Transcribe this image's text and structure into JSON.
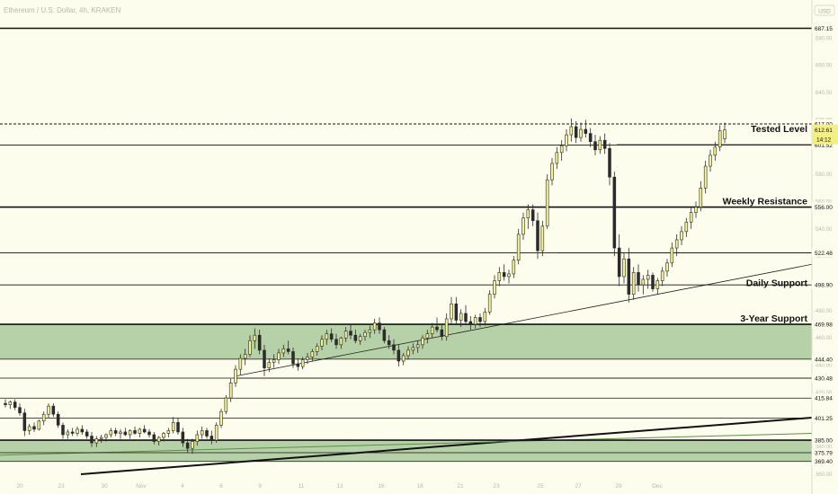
{
  "header": {
    "symbol_text": "Ethereum / U.S. Dollar, 4h, KRAKEN",
    "currency_badge": "USD"
  },
  "chart_data": {
    "type": "candlestick",
    "y_range": [
      360,
      700
    ],
    "x_ticks": [
      "20",
      "23",
      "30",
      "Nov",
      "4",
      "6",
      "9",
      "11",
      "13",
      "16",
      "18",
      "21",
      "23",
      "25",
      "27",
      "29",
      "Dec"
    ],
    "price_ticks": [
      680,
      660,
      640,
      620,
      600,
      580,
      560,
      540,
      520,
      500,
      480,
      460,
      440,
      420,
      400,
      380,
      360
    ],
    "levels": [
      {
        "price": 687.15,
        "label": "687.15",
        "annotation": "",
        "style": "solid",
        "weight": "heavy"
      },
      {
        "price": 617.0,
        "label": "617.00",
        "annotation": "",
        "style": "dashed",
        "weight": "normal"
      },
      {
        "price": 601.52,
        "label": "601.52",
        "annotation": "",
        "style": "solid",
        "weight": "thin"
      },
      {
        "price": 556.0,
        "label": "556.00",
        "annotation": "Weekly Resistance",
        "style": "solid",
        "weight": "heavy"
      },
      {
        "price": 522.48,
        "label": "522.48",
        "annotation": "",
        "style": "solid",
        "weight": "thin"
      },
      {
        "price": 498.9,
        "label": "498.90",
        "annotation": "",
        "style": "solid",
        "weight": "thin"
      },
      {
        "price": 469.98,
        "label": "469.98",
        "annotation": "3-Year Support",
        "style": "solid",
        "weight": "heavy"
      },
      {
        "price": 444.4,
        "label": "444.40",
        "annotation": "",
        "style": "solid",
        "weight": "thin"
      },
      {
        "price": 430.48,
        "label": "430.48",
        "annotation": "",
        "style": "solid",
        "weight": "thin"
      },
      {
        "price": 415.84,
        "label": "415.84",
        "annotation": "",
        "style": "solid",
        "weight": "thin"
      },
      {
        "price": 401.25,
        "label": "401.25",
        "annotation": "",
        "style": "solid",
        "weight": "thin"
      },
      {
        "price": 385.0,
        "label": "385.00",
        "annotation": "",
        "style": "solid",
        "weight": "heavy"
      },
      {
        "price": 375.79,
        "label": "375.79",
        "annotation": "",
        "style": "solid",
        "weight": "thin"
      },
      {
        "price": 369.4,
        "label": "369.40",
        "annotation": "",
        "style": "solid",
        "weight": "thin"
      }
    ],
    "text_annotations": [
      {
        "text": "Tested Level",
        "price": 613
      },
      {
        "text": "Daily Support",
        "price": 500
      }
    ],
    "current_price": {
      "value": "612.61",
      "countdown": "14:12"
    },
    "zones": [
      {
        "from": 444.4,
        "to": 469.98,
        "color": "#a9c99a"
      },
      {
        "from": 369.4,
        "to": 385.0,
        "color": "#a9c99a"
      }
    ],
    "colors": {
      "up": "#f6f290",
      "down": "#2b2b2b",
      "zone": "#a9c99a",
      "background": "#fdfdee"
    },
    "candles": [
      {
        "o": 412,
        "h": 415,
        "l": 409,
        "c": 411
      },
      {
        "o": 411,
        "h": 414,
        "l": 408,
        "c": 413
      },
      {
        "o": 413,
        "h": 415,
        "l": 407,
        "c": 409
      },
      {
        "o": 409,
        "h": 412,
        "l": 403,
        "c": 405
      },
      {
        "o": 405,
        "h": 408,
        "l": 388,
        "c": 392
      },
      {
        "o": 392,
        "h": 397,
        "l": 389,
        "c": 395
      },
      {
        "o": 395,
        "h": 398,
        "l": 391,
        "c": 393
      },
      {
        "o": 393,
        "h": 400,
        "l": 392,
        "c": 399
      },
      {
        "o": 399,
        "h": 406,
        "l": 396,
        "c": 404
      },
      {
        "o": 404,
        "h": 412,
        "l": 401,
        "c": 410
      },
      {
        "o": 410,
        "h": 412,
        "l": 402,
        "c": 404
      },
      {
        "o": 404,
        "h": 406,
        "l": 394,
        "c": 396
      },
      {
        "o": 396,
        "h": 398,
        "l": 386,
        "c": 389
      },
      {
        "o": 389,
        "h": 393,
        "l": 386,
        "c": 391
      },
      {
        "o": 391,
        "h": 394,
        "l": 388,
        "c": 390
      },
      {
        "o": 390,
        "h": 395,
        "l": 388,
        "c": 393
      },
      {
        "o": 393,
        "h": 396,
        "l": 389,
        "c": 391
      },
      {
        "o": 391,
        "h": 393,
        "l": 386,
        "c": 388
      },
      {
        "o": 388,
        "h": 391,
        "l": 380,
        "c": 383
      },
      {
        "o": 383,
        "h": 388,
        "l": 380,
        "c": 386
      },
      {
        "o": 386,
        "h": 389,
        "l": 383,
        "c": 387
      },
      {
        "o": 387,
        "h": 390,
        "l": 384,
        "c": 389
      },
      {
        "o": 389,
        "h": 394,
        "l": 387,
        "c": 392
      },
      {
        "o": 392,
        "h": 394,
        "l": 388,
        "c": 390
      },
      {
        "o": 390,
        "h": 393,
        "l": 386,
        "c": 391
      },
      {
        "o": 391,
        "h": 394,
        "l": 388,
        "c": 389
      },
      {
        "o": 389,
        "h": 393,
        "l": 386,
        "c": 392
      },
      {
        "o": 392,
        "h": 395,
        "l": 389,
        "c": 390
      },
      {
        "o": 390,
        "h": 394,
        "l": 387,
        "c": 393
      },
      {
        "o": 393,
        "h": 396,
        "l": 390,
        "c": 391
      },
      {
        "o": 391,
        "h": 393,
        "l": 387,
        "c": 389
      },
      {
        "o": 389,
        "h": 391,
        "l": 382,
        "c": 384
      },
      {
        "o": 384,
        "h": 388,
        "l": 381,
        "c": 387
      },
      {
        "o": 387,
        "h": 391,
        "l": 384,
        "c": 390
      },
      {
        "o": 390,
        "h": 394,
        "l": 387,
        "c": 392
      },
      {
        "o": 392,
        "h": 402,
        "l": 390,
        "c": 398
      },
      {
        "o": 398,
        "h": 401,
        "l": 389,
        "c": 391
      },
      {
        "o": 391,
        "h": 394,
        "l": 380,
        "c": 383
      },
      {
        "o": 383,
        "h": 386,
        "l": 376,
        "c": 379
      },
      {
        "o": 379,
        "h": 386,
        "l": 375,
        "c": 384
      },
      {
        "o": 384,
        "h": 392,
        "l": 381,
        "c": 389
      },
      {
        "o": 389,
        "h": 395,
        "l": 386,
        "c": 392
      },
      {
        "o": 392,
        "h": 394,
        "l": 386,
        "c": 388
      },
      {
        "o": 388,
        "h": 392,
        "l": 382,
        "c": 385
      },
      {
        "o": 385,
        "h": 398,
        "l": 383,
        "c": 396
      },
      {
        "o": 396,
        "h": 408,
        "l": 394,
        "c": 406
      },
      {
        "o": 406,
        "h": 418,
        "l": 404,
        "c": 416
      },
      {
        "o": 416,
        "h": 430,
        "l": 413,
        "c": 427
      },
      {
        "o": 427,
        "h": 440,
        "l": 424,
        "c": 437
      },
      {
        "o": 437,
        "h": 448,
        "l": 433,
        "c": 445
      },
      {
        "o": 445,
        "h": 452,
        "l": 440,
        "c": 448
      },
      {
        "o": 448,
        "h": 462,
        "l": 446,
        "c": 458
      },
      {
        "o": 458,
        "h": 467,
        "l": 452,
        "c": 462
      },
      {
        "o": 462,
        "h": 466,
        "l": 448,
        "c": 451
      },
      {
        "o": 451,
        "h": 455,
        "l": 432,
        "c": 438
      },
      {
        "o": 438,
        "h": 445,
        "l": 435,
        "c": 442
      },
      {
        "o": 442,
        "h": 448,
        "l": 438,
        "c": 444
      },
      {
        "o": 444,
        "h": 452,
        "l": 441,
        "c": 449
      },
      {
        "o": 449,
        "h": 455,
        "l": 446,
        "c": 452
      },
      {
        "o": 452,
        "h": 458,
        "l": 448,
        "c": 450
      },
      {
        "o": 450,
        "h": 453,
        "l": 438,
        "c": 441
      },
      {
        "o": 441,
        "h": 445,
        "l": 436,
        "c": 439
      },
      {
        "o": 439,
        "h": 446,
        "l": 437,
        "c": 444
      },
      {
        "o": 444,
        "h": 449,
        "l": 441,
        "c": 446
      },
      {
        "o": 446,
        "h": 452,
        "l": 443,
        "c": 450
      },
      {
        "o": 450,
        "h": 456,
        "l": 447,
        "c": 454
      },
      {
        "o": 454,
        "h": 462,
        "l": 451,
        "c": 459
      },
      {
        "o": 459,
        "h": 466,
        "l": 455,
        "c": 463
      },
      {
        "o": 463,
        "h": 467,
        "l": 457,
        "c": 459
      },
      {
        "o": 459,
        "h": 463,
        "l": 452,
        "c": 455
      },
      {
        "o": 455,
        "h": 461,
        "l": 452,
        "c": 460
      },
      {
        "o": 460,
        "h": 468,
        "l": 457,
        "c": 465
      },
      {
        "o": 465,
        "h": 470,
        "l": 459,
        "c": 462
      },
      {
        "o": 462,
        "h": 466,
        "l": 456,
        "c": 458
      },
      {
        "o": 458,
        "h": 463,
        "l": 455,
        "c": 461
      },
      {
        "o": 461,
        "h": 466,
        "l": 458,
        "c": 464
      },
      {
        "o": 464,
        "h": 469,
        "l": 460,
        "c": 466
      },
      {
        "o": 466,
        "h": 474,
        "l": 463,
        "c": 471
      },
      {
        "o": 471,
        "h": 475,
        "l": 463,
        "c": 466
      },
      {
        "o": 466,
        "h": 468,
        "l": 456,
        "c": 458
      },
      {
        "o": 458,
        "h": 462,
        "l": 452,
        "c": 455
      },
      {
        "o": 455,
        "h": 459,
        "l": 448,
        "c": 451
      },
      {
        "o": 451,
        "h": 455,
        "l": 439,
        "c": 443
      },
      {
        "o": 443,
        "h": 449,
        "l": 440,
        "c": 447
      },
      {
        "o": 447,
        "h": 454,
        "l": 444,
        "c": 451
      },
      {
        "o": 451,
        "h": 456,
        "l": 448,
        "c": 453
      },
      {
        "o": 453,
        "h": 458,
        "l": 449,
        "c": 455
      },
      {
        "o": 455,
        "h": 462,
        "l": 452,
        "c": 460
      },
      {
        "o": 460,
        "h": 466,
        "l": 456,
        "c": 463
      },
      {
        "o": 463,
        "h": 471,
        "l": 460,
        "c": 468
      },
      {
        "o": 468,
        "h": 475,
        "l": 464,
        "c": 466
      },
      {
        "o": 466,
        "h": 470,
        "l": 458,
        "c": 461
      },
      {
        "o": 461,
        "h": 478,
        "l": 458,
        "c": 474
      },
      {
        "o": 474,
        "h": 490,
        "l": 470,
        "c": 485
      },
      {
        "o": 485,
        "h": 490,
        "l": 470,
        "c": 473
      },
      {
        "o": 473,
        "h": 481,
        "l": 468,
        "c": 478
      },
      {
        "o": 478,
        "h": 484,
        "l": 470,
        "c": 472
      },
      {
        "o": 472,
        "h": 476,
        "l": 466,
        "c": 470
      },
      {
        "o": 470,
        "h": 477,
        "l": 467,
        "c": 475
      },
      {
        "o": 475,
        "h": 478,
        "l": 468,
        "c": 472
      },
      {
        "o": 472,
        "h": 482,
        "l": 469,
        "c": 479
      },
      {
        "o": 479,
        "h": 495,
        "l": 477,
        "c": 492
      },
      {
        "o": 492,
        "h": 506,
        "l": 489,
        "c": 502
      },
      {
        "o": 502,
        "h": 512,
        "l": 498,
        "c": 508
      },
      {
        "o": 508,
        "h": 514,
        "l": 502,
        "c": 505
      },
      {
        "o": 505,
        "h": 510,
        "l": 500,
        "c": 507
      },
      {
        "o": 507,
        "h": 520,
        "l": 504,
        "c": 517
      },
      {
        "o": 517,
        "h": 540,
        "l": 514,
        "c": 536
      },
      {
        "o": 536,
        "h": 552,
        "l": 532,
        "c": 548
      },
      {
        "o": 548,
        "h": 558,
        "l": 540,
        "c": 554
      },
      {
        "o": 554,
        "h": 558,
        "l": 542,
        "c": 546
      },
      {
        "o": 546,
        "h": 552,
        "l": 518,
        "c": 524
      },
      {
        "o": 524,
        "h": 546,
        "l": 520,
        "c": 542
      },
      {
        "o": 542,
        "h": 580,
        "l": 540,
        "c": 576
      },
      {
        "o": 576,
        "h": 592,
        "l": 572,
        "c": 588
      },
      {
        "o": 588,
        "h": 600,
        "l": 584,
        "c": 596
      },
      {
        "o": 596,
        "h": 605,
        "l": 590,
        "c": 601
      },
      {
        "o": 601,
        "h": 613,
        "l": 597,
        "c": 609
      },
      {
        "o": 609,
        "h": 621,
        "l": 604,
        "c": 615
      },
      {
        "o": 615,
        "h": 619,
        "l": 603,
        "c": 607
      },
      {
        "o": 607,
        "h": 618,
        "l": 604,
        "c": 613
      },
      {
        "o": 613,
        "h": 620,
        "l": 607,
        "c": 610
      },
      {
        "o": 610,
        "h": 614,
        "l": 600,
        "c": 604
      },
      {
        "o": 604,
        "h": 609,
        "l": 594,
        "c": 598
      },
      {
        "o": 598,
        "h": 608,
        "l": 595,
        "c": 605
      },
      {
        "o": 605,
        "h": 610,
        "l": 595,
        "c": 599
      },
      {
        "o": 599,
        "h": 603,
        "l": 572,
        "c": 578
      },
      {
        "o": 578,
        "h": 582,
        "l": 520,
        "c": 526
      },
      {
        "o": 526,
        "h": 536,
        "l": 498,
        "c": 505
      },
      {
        "o": 505,
        "h": 522,
        "l": 500,
        "c": 518
      },
      {
        "o": 518,
        "h": 526,
        "l": 486,
        "c": 492
      },
      {
        "o": 492,
        "h": 512,
        "l": 488,
        "c": 508
      },
      {
        "o": 508,
        "h": 514,
        "l": 494,
        "c": 499
      },
      {
        "o": 499,
        "h": 506,
        "l": 492,
        "c": 503
      },
      {
        "o": 503,
        "h": 510,
        "l": 496,
        "c": 506
      },
      {
        "o": 506,
        "h": 508,
        "l": 494,
        "c": 496
      },
      {
        "o": 496,
        "h": 504,
        "l": 492,
        "c": 502
      },
      {
        "o": 502,
        "h": 512,
        "l": 498,
        "c": 509
      },
      {
        "o": 509,
        "h": 518,
        "l": 505,
        "c": 515
      },
      {
        "o": 515,
        "h": 530,
        "l": 512,
        "c": 526
      },
      {
        "o": 526,
        "h": 536,
        "l": 520,
        "c": 532
      },
      {
        "o": 532,
        "h": 542,
        "l": 528,
        "c": 538
      },
      {
        "o": 538,
        "h": 548,
        "l": 534,
        "c": 545
      },
      {
        "o": 545,
        "h": 556,
        "l": 540,
        "c": 552
      },
      {
        "o": 552,
        "h": 560,
        "l": 548,
        "c": 556
      },
      {
        "o": 556,
        "h": 575,
        "l": 553,
        "c": 570
      },
      {
        "o": 570,
        "h": 590,
        "l": 566,
        "c": 586
      },
      {
        "o": 586,
        "h": 598,
        "l": 582,
        "c": 594
      },
      {
        "o": 594,
        "h": 604,
        "l": 590,
        "c": 600
      },
      {
        "o": 600,
        "h": 616,
        "l": 597,
        "c": 612
      },
      {
        "o": 606,
        "h": 618,
        "l": 603,
        "c": 612.61
      }
    ]
  }
}
